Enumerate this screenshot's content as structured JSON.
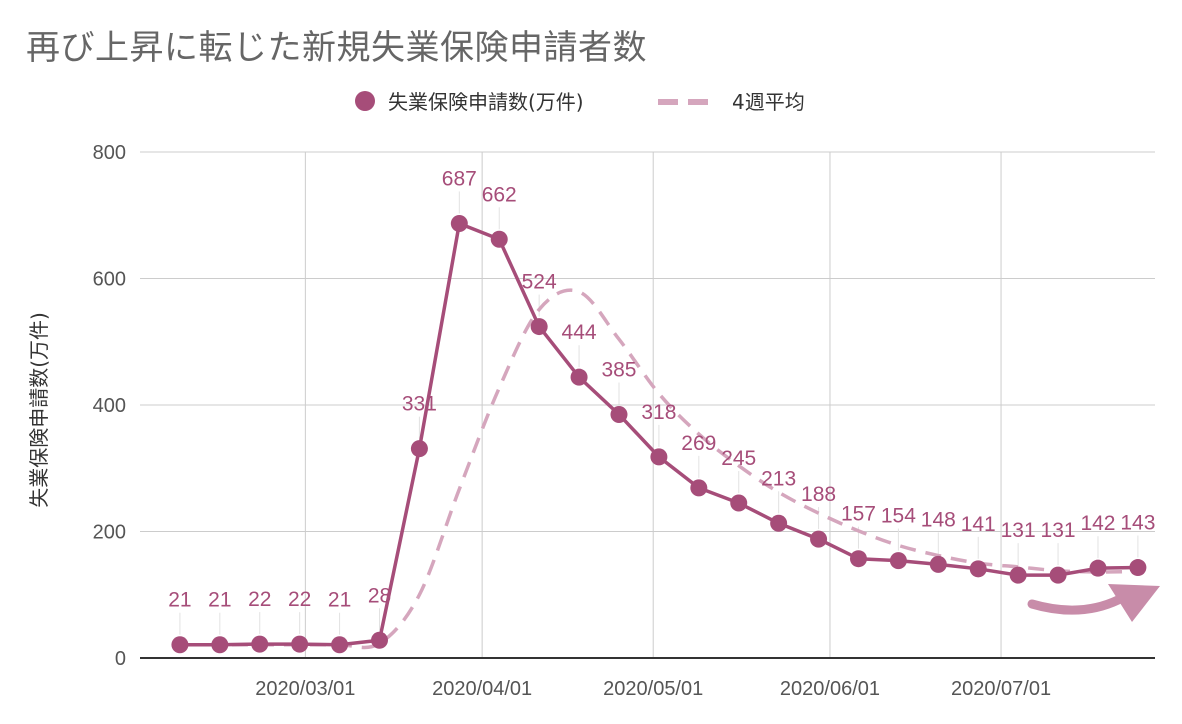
{
  "chart_data": {
    "type": "line",
    "title": "再び上昇に転じた新規失業保険申請者数",
    "ylabel": "失業保険申請数(万件)",
    "ylim": [
      0,
      800
    ],
    "yticks": [
      0,
      200,
      400,
      600,
      800
    ],
    "x_tick_labels": [
      "2020/03/01",
      "2020/04/01",
      "2020/05/01",
      "2020/06/01",
      "2020/07/01"
    ],
    "x_tick_dates": [
      "2020-03-01",
      "2020-04-01",
      "2020-05-01",
      "2020-06-01",
      "2020-07-01"
    ],
    "grid": true,
    "legend_position": "top",
    "series": [
      {
        "name": "失業保険申請数(万件)",
        "style": "solid-with-markers",
        "color": "#a64d79",
        "x": [
          "2020-02-08",
          "2020-02-15",
          "2020-02-22",
          "2020-02-29",
          "2020-03-07",
          "2020-03-14",
          "2020-03-21",
          "2020-03-28",
          "2020-04-04",
          "2020-04-11",
          "2020-04-18",
          "2020-04-25",
          "2020-05-02",
          "2020-05-09",
          "2020-05-16",
          "2020-05-23",
          "2020-05-30",
          "2020-06-06",
          "2020-06-13",
          "2020-06-20",
          "2020-06-27",
          "2020-07-04",
          "2020-07-11",
          "2020-07-18",
          "2020-07-25"
        ],
        "values": [
          21,
          21,
          22,
          22,
          21,
          28,
          331,
          687,
          662,
          524,
          444,
          385,
          318,
          269,
          245,
          213,
          188,
          157,
          154,
          148,
          141,
          131,
          131,
          142,
          143
        ]
      },
      {
        "name": "4週平均",
        "style": "dashed",
        "color": "#d5a6bd",
        "x": [
          "2020-02-08",
          "2020-02-15",
          "2020-02-22",
          "2020-02-29",
          "2020-03-07",
          "2020-03-14",
          "2020-03-21",
          "2020-03-28",
          "2020-04-04",
          "2020-04-11",
          "2020-04-18",
          "2020-04-25",
          "2020-05-02",
          "2020-05-09",
          "2020-05-16",
          "2020-05-23",
          "2020-05-30",
          "2020-06-06",
          "2020-06-13",
          "2020-06-20",
          "2020-06-27",
          "2020-07-04",
          "2020-07-11",
          "2020-07-18",
          "2020-07-25"
        ],
        "values": [
          21,
          21,
          21,
          21,
          21,
          23,
          100,
          267,
          427,
          551,
          579,
          504,
          418,
          354,
          304,
          262,
          229,
          201,
          178,
          162,
          150,
          144,
          138,
          136,
          137
        ]
      }
    ],
    "annotation": {
      "type": "arrow",
      "meaning": "upturn",
      "color": "#c88ca9"
    }
  }
}
